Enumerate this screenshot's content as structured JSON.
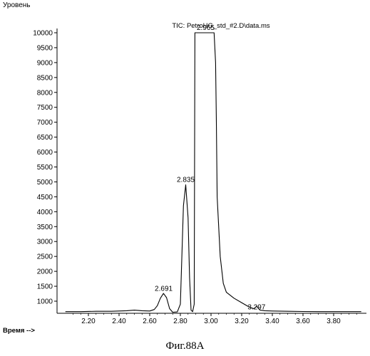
{
  "caption": "Фиг.88А",
  "chart_data": {
    "type": "line",
    "title": "TIC: PetroHG_std_#2.D\\data.ms",
    "ylabel": "Уровень",
    "xlabel": "Время -->",
    "xlim": [
      2.05,
      3.98
    ],
    "ylim": [
      600,
      10100
    ],
    "x_ticks": [
      "2.20",
      "2.40",
      "2.60",
      "2.80",
      "3.00",
      "3.20",
      "3.40",
      "3.60",
      "3.80"
    ],
    "y_ticks": [
      "1000",
      "1500",
      "2000",
      "2500",
      "3000",
      "3500",
      "4000",
      "4500",
      "5000",
      "5500",
      "6000",
      "6500",
      "7000",
      "7500",
      "8000",
      "8500",
      "9000",
      "9500",
      "10000"
    ],
    "peak_labels": [
      {
        "text": "2.691",
        "x": 2.691,
        "y": 1250
      },
      {
        "text": "2.835",
        "x": 2.835,
        "y": 4900
      },
      {
        "text": "2.965",
        "x": 2.965,
        "y": 10000
      },
      {
        "text": "3.297",
        "x": 3.297,
        "y": 630
      }
    ],
    "series": [
      {
        "x": [
          2.05,
          2.15,
          2.25,
          2.35,
          2.45,
          2.5,
          2.55,
          2.6,
          2.63,
          2.65,
          2.67,
          2.69,
          2.71,
          2.73,
          2.75,
          2.78,
          2.8,
          2.81,
          2.82,
          2.835,
          2.85,
          2.86,
          2.87,
          2.88,
          2.89,
          2.895,
          2.9,
          2.91,
          3.02,
          3.03,
          3.035,
          3.04,
          3.06,
          3.08,
          3.1,
          3.15,
          3.2,
          3.25,
          3.28,
          3.297,
          3.32,
          3.35,
          3.4,
          3.5,
          3.6,
          3.7,
          3.8,
          3.9,
          3.98
        ],
        "y": [
          650,
          650,
          660,
          660,
          680,
          700,
          680,
          670,
          720,
          850,
          1100,
          1260,
          1120,
          750,
          630,
          640,
          900,
          2500,
          4200,
          4900,
          3800,
          1800,
          700,
          650,
          900,
          10000,
          10000,
          10000,
          10000,
          9000,
          7000,
          4500,
          2500,
          1600,
          1300,
          1100,
          950,
          800,
          750,
          830,
          700,
          680,
          670,
          660,
          655,
          650,
          650,
          650,
          650
        ]
      }
    ]
  }
}
